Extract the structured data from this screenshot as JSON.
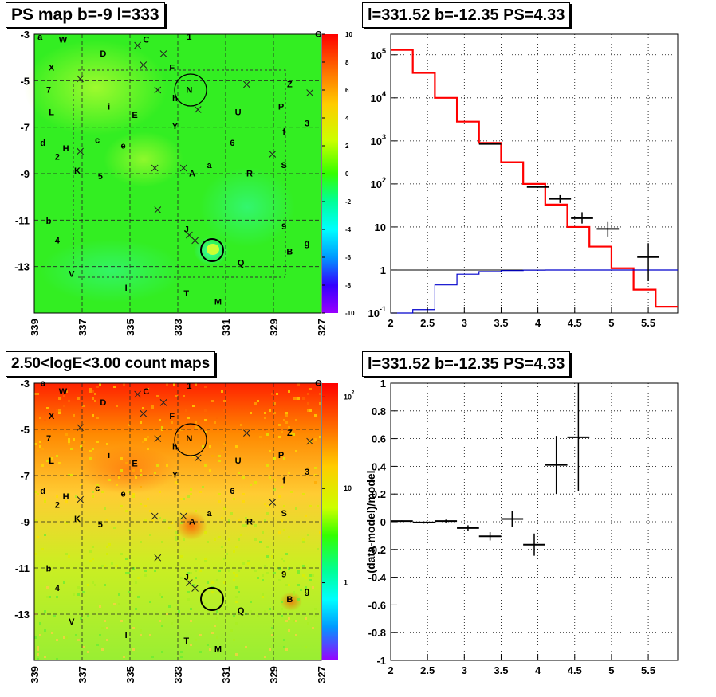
{
  "panels": {
    "ps_map_title": "PS map b=-9 l=333",
    "count_map_title": "2.50<logE<3.00 count maps",
    "spectrum_title": "l=331.52 b=-12.35 PS=4.33",
    "residual_title": "l=331.52 b=-12.35 PS=4.33"
  },
  "chart_data": [
    {
      "type": "heatmap",
      "title": "PS map b=-9 l=333",
      "xticks": [
        "339",
        "337",
        "335",
        "333",
        "331",
        "329",
        "327"
      ],
      "yticks": [
        "-3",
        "-5",
        "-7",
        "-9",
        "-11",
        "-13"
      ],
      "xlim": [
        339,
        327
      ],
      "ylim": [
        -15,
        -3
      ],
      "colorbar": {
        "min": -10,
        "max": 10,
        "ticks": [
          "10",
          "8",
          "6",
          "4",
          "2",
          "0",
          "-2",
          "-4",
          "-6",
          "-8",
          "-10"
        ]
      },
      "hotspot": {
        "l": 331.5,
        "b": -12.3
      },
      "markers": [
        "N",
        "J-circle"
      ],
      "grid": true
    },
    {
      "type": "bar",
      "title": "l=331.52 b=-12.35 PS=4.33",
      "yscale": "log",
      "xlim": [
        2,
        5.9
      ],
      "ylim": [
        0.1,
        300000
      ],
      "xticks": [
        "2",
        "2.5",
        "3",
        "3.5",
        "4",
        "4.5",
        "5",
        "5.5"
      ],
      "yticks": [
        "10^-1",
        "1",
        "10",
        "10^2",
        "10^3",
        "10^4",
        "10^5"
      ],
      "model_hist": {
        "color": "#ff0000",
        "edges": [
          2,
          2.3,
          2.6,
          2.9,
          3.2,
          3.5,
          3.8,
          4.1,
          4.4,
          4.7,
          5.0,
          5.3,
          5.6,
          5.9
        ],
        "values": [
          130000,
          38000,
          10000,
          2800,
          900,
          320,
          100,
          33,
          10,
          3.5,
          1.1,
          0.35,
          0.14
        ]
      },
      "ps_hist": {
        "color": "#0000cc",
        "edges": [
          2,
          2.3,
          2.6,
          2.9,
          3.2,
          3.5,
          3.8,
          4.1,
          4.4,
          4.7,
          5.0,
          5.3,
          5.6,
          5.9
        ],
        "values": [
          0.1,
          0.12,
          0.45,
          0.8,
          0.92,
          0.97,
          0.99,
          1,
          1,
          1,
          1,
          1,
          1
        ]
      },
      "data_points": [
        {
          "x": 3.35,
          "y": 850,
          "xerr": 0.15
        },
        {
          "x": 4.0,
          "y": 85,
          "xerr": 0.15
        },
        {
          "x": 4.3,
          "y": 45,
          "xerr": 0.15,
          "ylo": 36,
          "yhi": 55
        },
        {
          "x": 4.6,
          "y": 16,
          "xerr": 0.15,
          "ylo": 12,
          "yhi": 22
        },
        {
          "x": 4.95,
          "y": 9,
          "xerr": 0.15,
          "ylo": 6,
          "yhi": 13
        },
        {
          "x": 5.5,
          "y": 2,
          "xerr": 0.15,
          "ylo": 0.55,
          "yhi": 4.2
        }
      ],
      "grid": true
    },
    {
      "type": "heatmap",
      "title": "2.50<logE<3.00 count maps",
      "xticks": [
        "339",
        "337",
        "335",
        "333",
        "331",
        "329",
        "327"
      ],
      "yticks": [
        "-3",
        "-5",
        "-7",
        "-9",
        "-11",
        "-13"
      ],
      "xlim": [
        339,
        327
      ],
      "ylim": [
        -15,
        -3
      ],
      "colorbar": {
        "scale": "log",
        "ticks": [
          "10^2",
          "10",
          "1"
        ]
      },
      "grid": true
    },
    {
      "type": "scatter",
      "title": "l=331.52 b=-12.35 PS=4.33",
      "ylabel": "(data-model)/model",
      "xlim": [
        2,
        5.9
      ],
      "ylim": [
        -1,
        1
      ],
      "xticks": [
        "2",
        "2.5",
        "3",
        "3.5",
        "4",
        "4.5",
        "5",
        "5.5"
      ],
      "yticks": [
        "1",
        "0.8",
        "0.6",
        "0.4",
        "0.2",
        "0",
        "-0.2",
        "-0.4",
        "-0.6",
        "-0.8",
        "-1"
      ],
      "points": [
        {
          "x": 2.15,
          "y": 0.005,
          "xerr": 0.15,
          "yerr": 0.005
        },
        {
          "x": 2.45,
          "y": -0.005,
          "xerr": 0.15,
          "yerr": 0.008
        },
        {
          "x": 2.75,
          "y": 0.005,
          "xerr": 0.15,
          "yerr": 0.01
        },
        {
          "x": 3.05,
          "y": -0.045,
          "xerr": 0.15,
          "yerr": 0.02
        },
        {
          "x": 3.35,
          "y": -0.105,
          "xerr": 0.15,
          "yerr": 0.03
        },
        {
          "x": 3.65,
          "y": 0.02,
          "xerr": 0.15,
          "yerr": 0.06
        },
        {
          "x": 3.95,
          "y": -0.165,
          "xerr": 0.15,
          "yerr": 0.08
        },
        {
          "x": 4.25,
          "y": 0.41,
          "xerr": 0.15,
          "yerr": 0.21
        },
        {
          "x": 4.55,
          "y": 0.61,
          "xerr": 0.15,
          "yerr": 0.39
        }
      ],
      "grid": true
    }
  ],
  "map_labels": {
    "top": [
      "W",
      "C",
      "1",
      "X",
      "D",
      "F",
      "N",
      "7",
      "i",
      "h",
      "Z",
      "L",
      "E",
      "U",
      "P",
      "Y",
      "3",
      "f",
      "d",
      "H",
      "c",
      "e",
      "6",
      "2",
      "K",
      "5",
      "a",
      "A",
      "R",
      "S",
      "b",
      "J",
      "9",
      "4",
      "B",
      "g",
      "Q",
      "V",
      "I",
      "T",
      "M",
      "a",
      "O"
    ],
    "count": [
      "a",
      "W",
      "C",
      "1",
      "X",
      "D",
      "F",
      "N",
      "7",
      "i",
      "h",
      "Z",
      "L",
      "E",
      "U",
      "P",
      "Y",
      "3",
      "f",
      "d",
      "H",
      "c",
      "e",
      "6",
      "2",
      "K",
      "5",
      "a",
      "A",
      "R",
      "S",
      "b",
      "J",
      "9",
      "4",
      "B",
      "g",
      "Q",
      "V",
      "I",
      "T",
      "M",
      "O"
    ]
  }
}
